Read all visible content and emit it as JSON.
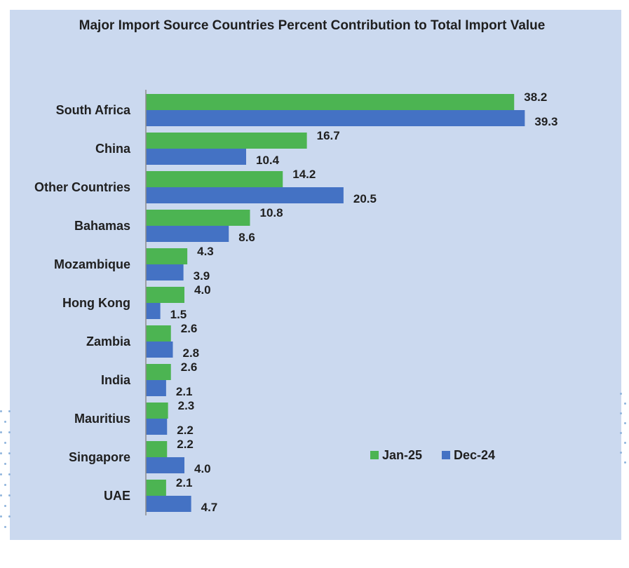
{
  "chart_data": {
    "type": "bar",
    "orientation": "horizontal",
    "title": "Major Import Source Countries Percent Contribution to Total Import Value",
    "categories": [
      "South Africa",
      "China",
      "Other Countries",
      "Bahamas",
      "Mozambique",
      "Hong Kong",
      "Zambia",
      "India",
      "Mauritius",
      "Singapore",
      "UAE"
    ],
    "series": [
      {
        "name": "Jan-25",
        "color": "#4cb452",
        "values": [
          38.2,
          16.7,
          14.2,
          10.8,
          4.3,
          4.0,
          2.6,
          2.6,
          2.3,
          2.2,
          2.1
        ]
      },
      {
        "name": "Dec-24",
        "color": "#4472c4",
        "values": [
          39.3,
          10.4,
          20.5,
          8.6,
          3.9,
          1.5,
          2.8,
          2.1,
          2.2,
          4.0,
          4.7
        ]
      }
    ],
    "value_labels": [
      [
        "38.2",
        "16.7",
        "14.2",
        "10.8",
        "4.3",
        "4.0",
        "2.6",
        "2.6",
        "2.3",
        "2.2",
        "2.1"
      ],
      [
        "39.3",
        "10.4",
        "20.5",
        "8.6",
        "3.9",
        "1.5",
        "2.8",
        "2.1",
        "2.2",
        "4.0",
        "4.7"
      ]
    ],
    "xlim": [
      0,
      40
    ],
    "grid": false,
    "legend": "inside-right"
  }
}
